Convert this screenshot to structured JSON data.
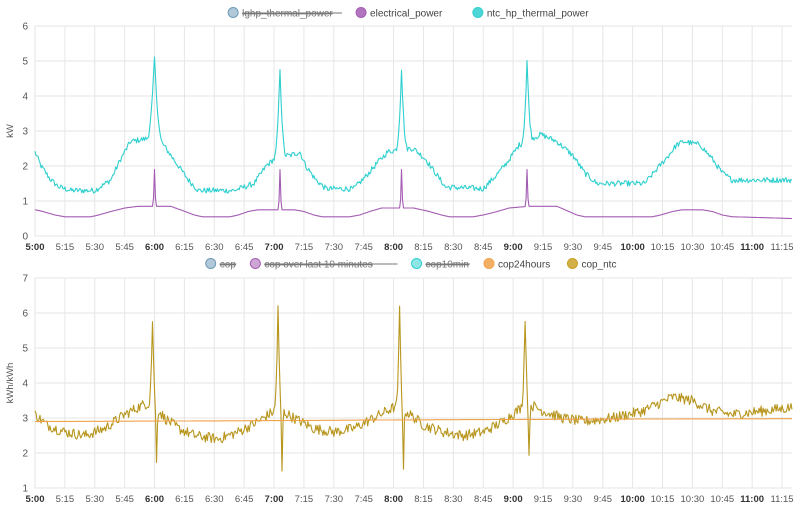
{
  "time_ticks": [
    "5:00",
    "5:15",
    "5:30",
    "5:45",
    "6:00",
    "6:15",
    "6:30",
    "6:45",
    "7:00",
    "7:15",
    "7:30",
    "7:45",
    "8:00",
    "8:15",
    "8:30",
    "8:45",
    "9:00",
    "9:15",
    "9:30",
    "9:45",
    "10:00",
    "10:15",
    "10:30",
    "10:45",
    "11:00",
    "11:15"
  ],
  "bold_ticks": [
    "5:00",
    "6:00",
    "7:00",
    "8:00",
    "9:00",
    "10:00",
    "11:00"
  ],
  "colors": {
    "grid": "#e6e6e6",
    "axis_text": "#555555",
    "legend_text": "#444444",
    "struck_text": "#777777"
  },
  "chart_data": [
    {
      "type": "line",
      "ylabel": "kW",
      "xlabel": "",
      "xlim": [
        "5:00",
        "11:20"
      ],
      "ylim": [
        0,
        6
      ],
      "yticks": [
        "0",
        "1",
        "2",
        "3",
        "4",
        "5",
        "6"
      ],
      "grid": true,
      "legend_position": "top-center",
      "legend": [
        {
          "name": "lghp_thermal_power",
          "color": "#6f9ab8",
          "hidden": true
        },
        {
          "name": "electrical_power",
          "color": "#a45cb3",
          "hidden": false
        },
        {
          "name": "ntc_hp_thermal_power",
          "color": "#2fcfcf",
          "hidden": false
        }
      ],
      "series": [
        {
          "name": "ntc_hp_thermal_power",
          "color": "#2fcfcf",
          "baseline": [
            [
              0,
              2.4
            ],
            [
              3,
              2.0
            ],
            [
              8,
              1.6
            ],
            [
              12,
              1.4
            ],
            [
              18,
              1.3
            ],
            [
              30,
              1.3
            ],
            [
              38,
              1.6
            ],
            [
              43,
              2.2
            ],
            [
              48,
              2.7
            ],
            [
              58,
              2.8
            ],
            [
              62,
              2.8
            ],
            [
              67,
              2.4
            ],
            [
              72,
              2.0
            ],
            [
              77,
              1.6
            ],
            [
              82,
              1.3
            ],
            [
              100,
              1.3
            ],
            [
              110,
              1.5
            ],
            [
              116,
              2.0
            ],
            [
              122,
              2.3
            ],
            [
              128,
              2.3
            ],
            [
              133,
              2.4
            ],
            [
              136,
              2.0
            ],
            [
              141,
              1.6
            ],
            [
              146,
              1.35
            ],
            [
              160,
              1.35
            ],
            [
              166,
              1.7
            ],
            [
              172,
              2.1
            ],
            [
              177,
              2.4
            ],
            [
              184,
              2.5
            ],
            [
              190,
              2.5
            ],
            [
              196,
              2.2
            ],
            [
              201,
              1.8
            ],
            [
              206,
              1.4
            ],
            [
              225,
              1.35
            ],
            [
              231,
              1.7
            ],
            [
              237,
              2.1
            ],
            [
              243,
              2.6
            ],
            [
              250,
              2.8
            ],
            [
              254,
              2.9
            ],
            [
              262,
              2.7
            ],
            [
              270,
              2.3
            ],
            [
              276,
              1.8
            ],
            [
              282,
              1.5
            ],
            [
              306,
              1.5
            ],
            [
              312,
              1.9
            ],
            [
              318,
              2.3
            ],
            [
              322,
              2.6
            ],
            [
              326,
              2.7
            ],
            [
              334,
              2.6
            ],
            [
              340,
              2.2
            ],
            [
              345,
              1.8
            ],
            [
              350,
              1.6
            ],
            [
              380,
              1.6
            ]
          ],
          "spikes": [
            [
              60,
              5.1,
              4
            ],
            [
              123,
              4.8,
              3
            ],
            [
              184,
              4.8,
              3
            ],
            [
              247,
              5.0,
              3
            ]
          ],
          "noise": 0.08
        },
        {
          "name": "electrical_power",
          "color": "#a45cb3",
          "baseline": [
            [
              0,
              0.75
            ],
            [
              4,
              0.7
            ],
            [
              10,
              0.6
            ],
            [
              15,
              0.55
            ],
            [
              28,
              0.55
            ],
            [
              32,
              0.6
            ],
            [
              38,
              0.7
            ],
            [
              45,
              0.8
            ],
            [
              52,
              0.85
            ],
            [
              68,
              0.85
            ],
            [
              73,
              0.75
            ],
            [
              80,
              0.6
            ],
            [
              84,
              0.55
            ],
            [
              98,
              0.55
            ],
            [
              102,
              0.6
            ],
            [
              107,
              0.7
            ],
            [
              112,
              0.75
            ],
            [
              130,
              0.75
            ],
            [
              135,
              0.7
            ],
            [
              140,
              0.6
            ],
            [
              144,
              0.55
            ],
            [
              158,
              0.55
            ],
            [
              163,
              0.6
            ],
            [
              168,
              0.7
            ],
            [
              174,
              0.8
            ],
            [
              190,
              0.8
            ],
            [
              198,
              0.7
            ],
            [
              204,
              0.6
            ],
            [
              208,
              0.55
            ],
            [
              220,
              0.55
            ],
            [
              225,
              0.6
            ],
            [
              232,
              0.7
            ],
            [
              238,
              0.8
            ],
            [
              248,
              0.85
            ],
            [
              262,
              0.85
            ],
            [
              266,
              0.75
            ],
            [
              272,
              0.6
            ],
            [
              276,
              0.55
            ],
            [
              310,
              0.55
            ],
            [
              314,
              0.6
            ],
            [
              320,
              0.7
            ],
            [
              325,
              0.75
            ],
            [
              335,
              0.75
            ],
            [
              340,
              0.7
            ],
            [
              345,
              0.6
            ],
            [
              350,
              0.55
            ],
            [
              380,
              0.5
            ]
          ],
          "spikes": [
            [
              60,
              1.9,
              1
            ],
            [
              123,
              1.9,
              1
            ],
            [
              184,
              1.9,
              1
            ],
            [
              247,
              1.9,
              1
            ]
          ],
          "noise": 0.0
        }
      ]
    },
    {
      "type": "line",
      "ylabel": "kWh/kWh",
      "xlabel": "",
      "xlim": [
        "5:00",
        "11:20"
      ],
      "ylim": [
        1,
        7
      ],
      "yticks": [
        "1",
        "2",
        "3",
        "4",
        "5",
        "6",
        "7"
      ],
      "grid": true,
      "legend_position": "top-center",
      "legend": [
        {
          "name": "cop",
          "color": "#6f9ab8",
          "hidden": true
        },
        {
          "name": "cop over last 10 minutes",
          "color": "#a45cb3",
          "hidden": true
        },
        {
          "name": "cop10min",
          "color": "#2fcfcf",
          "hidden": true
        },
        {
          "name": "cop24hours",
          "color": "#f0a24a",
          "hidden": false
        },
        {
          "name": "cop_ntc",
          "color": "#c9a227",
          "hidden": false
        }
      ],
      "series": [
        {
          "name": "cop_ntc",
          "color": "#b8961e",
          "baseline": [
            [
              0,
              3.1
            ],
            [
              6,
              2.8
            ],
            [
              15,
              2.6
            ],
            [
              25,
              2.5
            ],
            [
              35,
              2.7
            ],
            [
              45,
              3.1
            ],
            [
              55,
              3.4
            ],
            [
              58,
              3.4
            ],
            [
              61,
              3.3
            ],
            [
              65,
              3.0
            ],
            [
              72,
              2.7
            ],
            [
              80,
              2.5
            ],
            [
              92,
              2.4
            ],
            [
              102,
              2.6
            ],
            [
              112,
              2.9
            ],
            [
              120,
              3.2
            ],
            [
              124,
              3.2
            ],
            [
              130,
              3.0
            ],
            [
              140,
              2.7
            ],
            [
              150,
              2.6
            ],
            [
              160,
              2.7
            ],
            [
              170,
              3.0
            ],
            [
              180,
              3.3
            ],
            [
              186,
              3.2
            ],
            [
              195,
              2.8
            ],
            [
              205,
              2.6
            ],
            [
              215,
              2.5
            ],
            [
              225,
              2.6
            ],
            [
              235,
              2.9
            ],
            [
              244,
              3.3
            ],
            [
              248,
              3.4
            ],
            [
              255,
              3.2
            ],
            [
              265,
              3.0
            ],
            [
              275,
              2.9
            ],
            [
              290,
              3.0
            ],
            [
              305,
              3.2
            ],
            [
              320,
              3.6
            ],
            [
              330,
              3.5
            ],
            [
              340,
              3.2
            ],
            [
              350,
              3.1
            ],
            [
              365,
              3.2
            ],
            [
              380,
              3.3
            ]
          ],
          "spikes": [
            [
              59,
              5.8,
              2
            ],
            [
              61,
              1.7,
              1
            ],
            [
              122,
              6.2,
              2
            ],
            [
              124,
              1.5,
              1
            ],
            [
              183,
              6.1,
              2
            ],
            [
              185,
              1.6,
              1
            ],
            [
              246,
              5.9,
              2
            ],
            [
              248,
              1.8,
              1
            ]
          ],
          "noise": 0.15
        },
        {
          "name": "cop24hours",
          "color": "#f0a24a",
          "baseline": [
            [
              0,
              2.9
            ],
            [
              100,
              2.92
            ],
            [
              200,
              2.95
            ],
            [
              300,
              2.97
            ],
            [
              380,
              2.98
            ]
          ],
          "spikes": [],
          "noise": 0.0
        }
      ]
    }
  ]
}
